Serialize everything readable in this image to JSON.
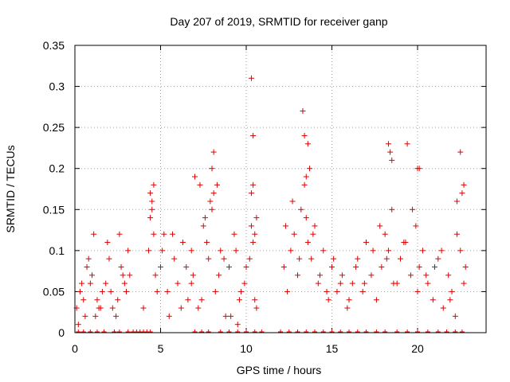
{
  "chart_data": {
    "type": "scatter",
    "title": "Day 207 of 2019, SRMTID for receiver ganp",
    "xlabel": "GPS time / hours",
    "ylabel": "SRMTID / TECUs",
    "xlim": [
      0,
      24
    ],
    "ylim": [
      0,
      0.35
    ],
    "xticks": [
      0,
      5,
      10,
      15,
      20
    ],
    "xtick_labels": [
      "0",
      "5",
      "10",
      "15",
      "20"
    ],
    "yticks": [
      0,
      0.05,
      0.1,
      0.15,
      0.2,
      0.25,
      0.3,
      0.35
    ],
    "ytick_labels": [
      "0",
      "0.05",
      "0.1",
      "0.15",
      "0.2",
      "0.25",
      "0.3",
      "0.35"
    ],
    "grid": true,
    "marker": "plus",
    "series": [
      {
        "name": "SRMTID",
        "color": "#e00000",
        "x": [
          0.1,
          0.3,
          0.6,
          1.0,
          1.3,
          1.8,
          2.2,
          2.7,
          3.0,
          0.2,
          0.5,
          0.9,
          1.1,
          1.5,
          2.0,
          2.4,
          2.8,
          3.1,
          0.4,
          0.7,
          1.2,
          1.6,
          1.9,
          2.5,
          2.9,
          0.8,
          1.4,
          2.1,
          2.6,
          3.2,
          4.0,
          4.3,
          4.5,
          4.6,
          4.8,
          5.0,
          5.2,
          5.5,
          5.8,
          6.0,
          6.3,
          6.6,
          6.9,
          7.2,
          7.5,
          7.8,
          8.0,
          8.2,
          8.5,
          8.8,
          9.0,
          9.3,
          9.6,
          9.9,
          10.2,
          10.4,
          10.6,
          4.4,
          4.7,
          5.1,
          5.4,
          5.7,
          6.2,
          6.5,
          6.8,
          7.0,
          7.4,
          7.7,
          8.1,
          8.4,
          8.7,
          9.1,
          9.4,
          9.7,
          10.0,
          10.3,
          10.5,
          4.4,
          4.5,
          4.6,
          6.8,
          7.3,
          7.6,
          7.9,
          8.0,
          8.1,
          8.3,
          9.5,
          10.3,
          10.4,
          10.5,
          10.6,
          12.2,
          12.4,
          12.6,
          12.8,
          13.0,
          13.2,
          13.4,
          13.6,
          13.8,
          14.0,
          14.2,
          14.5,
          14.8,
          15.0,
          15.3,
          15.6,
          15.9,
          16.2,
          16.5,
          16.8,
          17.0,
          17.3,
          17.6,
          17.9,
          18.1,
          18.3,
          18.5,
          18.8,
          19.0,
          19.3,
          19.6,
          19.9,
          20.1,
          20.3,
          20.6,
          20.9,
          21.2,
          21.5,
          21.8,
          22.0,
          22.2,
          22.5,
          22.8,
          12.3,
          12.7,
          13.1,
          13.5,
          13.9,
          14.3,
          14.7,
          15.1,
          15.5,
          16.0,
          16.4,
          16.9,
          17.4,
          17.8,
          18.2,
          18.6,
          19.2,
          19.7,
          20.0,
          20.5,
          21.0,
          21.4,
          21.9,
          22.3,
          22.7,
          13.3,
          13.4,
          13.5,
          13.6,
          13.7,
          18.3,
          18.4,
          18.5,
          19.4,
          20.0,
          20.1,
          22.3,
          22.5,
          22.6,
          22.7,
          10.3,
          10.4
        ],
        "y": [
          0.03,
          0.05,
          0.02,
          0.07,
          0.04,
          0.06,
          0.03,
          0.08,
          0.05,
          0.01,
          0.04,
          0.06,
          0.12,
          0.03,
          0.09,
          0.02,
          0.07,
          0.1,
          0.06,
          0.08,
          0.02,
          0.05,
          0.11,
          0.04,
          0.06,
          0.09,
          0.03,
          0.05,
          0.12,
          0.07,
          0.03,
          0.1,
          0.16,
          0.18,
          0.05,
          0.08,
          0.12,
          0.02,
          0.09,
          0.06,
          0.11,
          0.04,
          0.07,
          0.03,
          0.13,
          0.09,
          0.15,
          0.05,
          0.1,
          0.02,
          0.08,
          0.12,
          0.04,
          0.06,
          0.09,
          0.11,
          0.03,
          0.14,
          0.07,
          0.1,
          0.05,
          0.12,
          0.03,
          0.08,
          0.06,
          0.19,
          0.04,
          0.11,
          0.17,
          0.07,
          0.09,
          0.02,
          0.1,
          0.05,
          0.08,
          0.13,
          0.04,
          0.17,
          0.15,
          0.12,
          0.1,
          0.18,
          0.14,
          0.16,
          0.2,
          0.22,
          0.18,
          0.01,
          0.17,
          0.18,
          0.12,
          0.14,
          0.08,
          0.05,
          0.1,
          0.12,
          0.07,
          0.15,
          0.18,
          0.11,
          0.09,
          0.13,
          0.06,
          0.1,
          0.04,
          0.08,
          0.05,
          0.07,
          0.03,
          0.06,
          0.09,
          0.05,
          0.11,
          0.07,
          0.04,
          0.08,
          0.12,
          0.1,
          0.15,
          0.06,
          0.09,
          0.11,
          0.07,
          0.13,
          0.08,
          0.1,
          0.06,
          0.04,
          0.09,
          0.03,
          0.07,
          0.05,
          0.02,
          0.1,
          0.08,
          0.13,
          0.16,
          0.09,
          0.14,
          0.12,
          0.07,
          0.05,
          0.09,
          0.06,
          0.04,
          0.08,
          0.06,
          0.1,
          0.13,
          0.09,
          0.06,
          0.11,
          0.15,
          0.05,
          0.07,
          0.08,
          0.1,
          0.04,
          0.12,
          0.06,
          0.27,
          0.24,
          0.19,
          0.23,
          0.2,
          0.23,
          0.22,
          0.21,
          0.23,
          0.2,
          0.2,
          0.16,
          0.22,
          0.17,
          0.18,
          0.31,
          0.24
        ]
      }
    ],
    "zero_markers_x": [
      0.2,
      0.5,
      0.9,
      1.3,
      1.7,
      2.3,
      2.6,
      3.1,
      3.4,
      3.6,
      3.8,
      4.0,
      4.2,
      4.4,
      7.0,
      7.4,
      7.8,
      8.5,
      9.0,
      9.5,
      10.0,
      10.5,
      10.9,
      12.0,
      12.5,
      13.0,
      13.5,
      14.0,
      14.5,
      15.0,
      15.5,
      16.0,
      16.5,
      17.0,
      17.6,
      18.1,
      18.8,
      19.4,
      20.0,
      20.6,
      21.2,
      21.7,
      22.2,
      22.6
    ]
  }
}
